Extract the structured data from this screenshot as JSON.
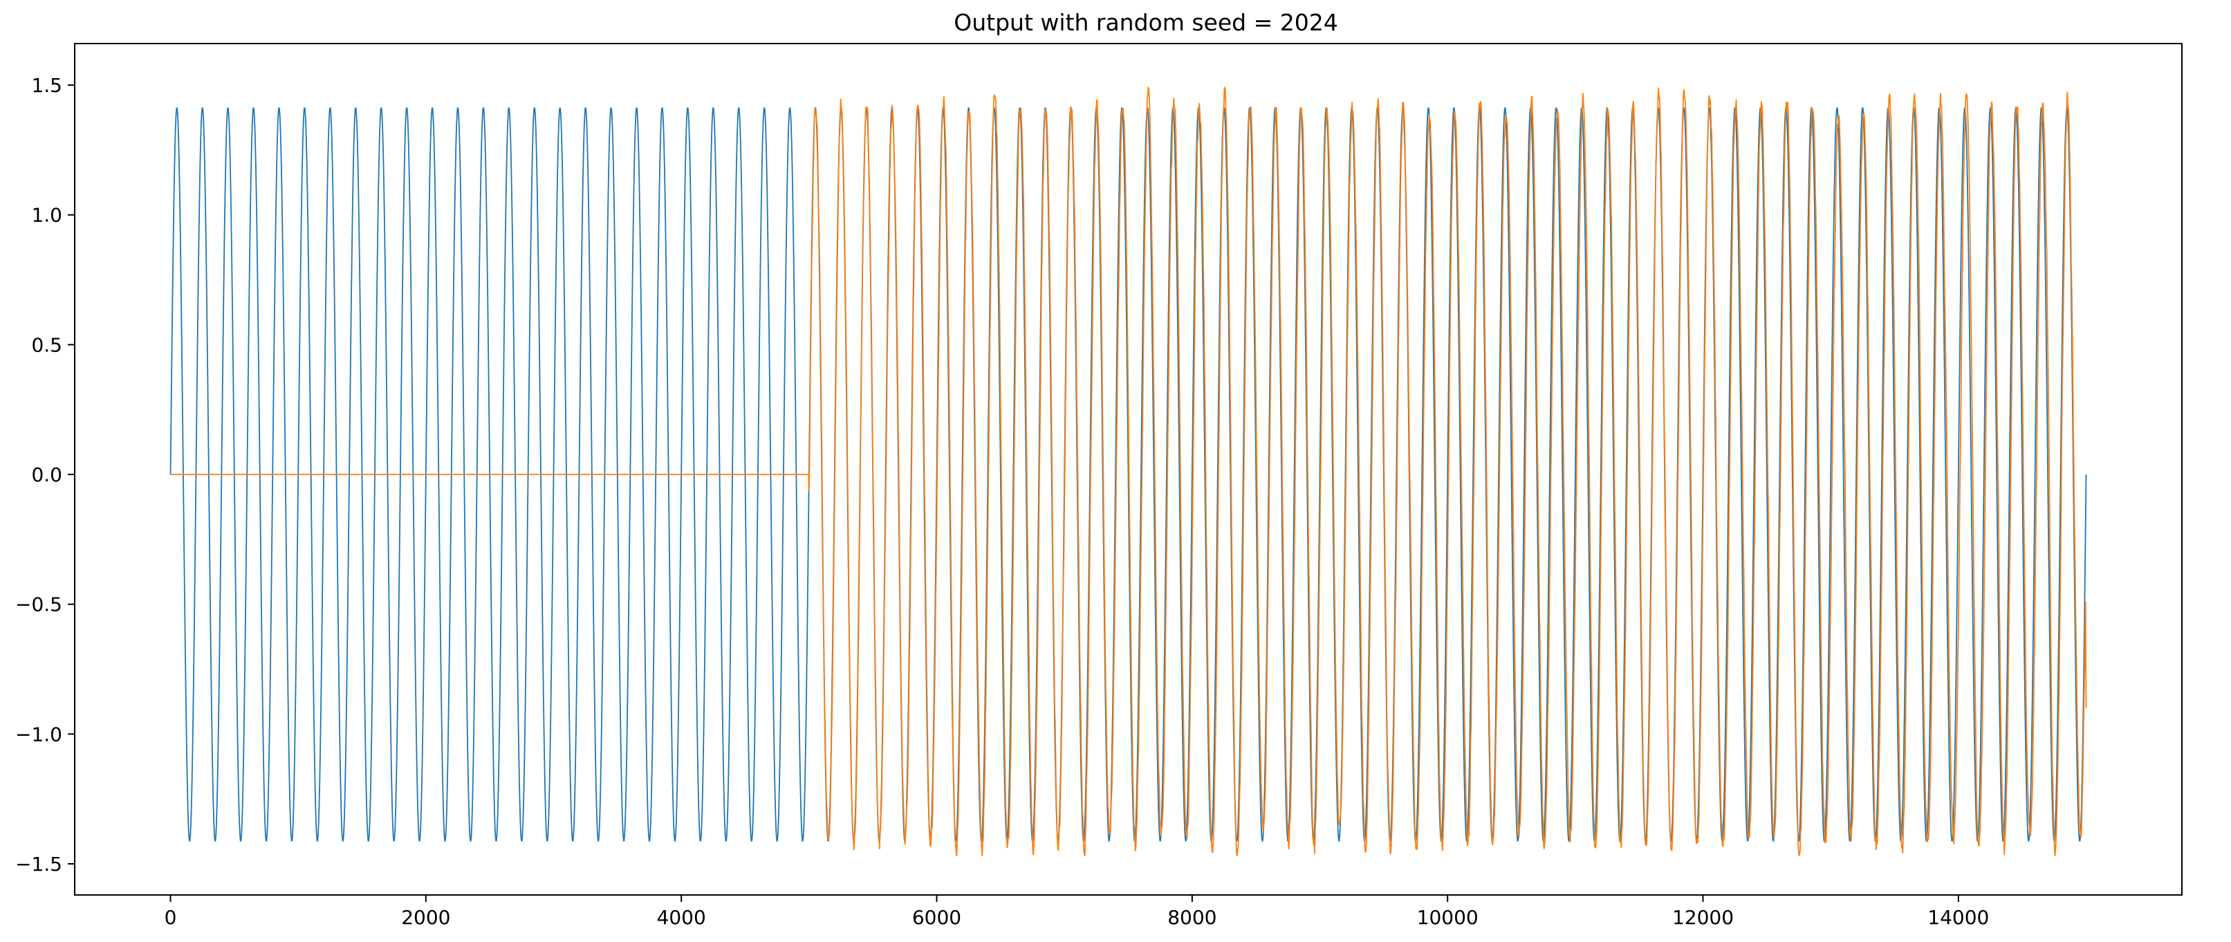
{
  "chart_data": {
    "type": "line",
    "title": "Output with random seed = 2024",
    "xlabel": "",
    "ylabel": "",
    "xlim": [
      -750,
      15750
    ],
    "ylim": [
      -1.62,
      1.66
    ],
    "xticks": [
      0,
      2000,
      4000,
      6000,
      8000,
      10000,
      12000,
      14000
    ],
    "xtick_labels": [
      "0",
      "2000",
      "4000",
      "6000",
      "8000",
      "10000",
      "12000",
      "14000"
    ],
    "yticks": [
      -1.5,
      -1.0,
      -0.5,
      0.0,
      0.5,
      1.0,
      1.5
    ],
    "ytick_labels": [
      "−1.5",
      "−1.0",
      "−0.5",
      "0.0",
      "0.5",
      "1.0",
      "1.5"
    ],
    "grid": false,
    "legend": "none",
    "series": [
      {
        "color": "#1f77b4",
        "description": "sine wave, amplitude 1.414, period ~200 samples over x 0-15000",
        "amplitude": 1.414,
        "period": 200,
        "x_start": 0,
        "x_end": 15000
      },
      {
        "color": "#ff7f0e",
        "description": "zero for x 0-5000, then noisy sine wave approximating the target, amplitude ~1.42 with peaks up to ~1.51",
        "zero_until": 5000,
        "amplitude": 1.42,
        "period": 200,
        "x_start": 0,
        "x_end": 15000,
        "end_value": -0.9
      }
    ]
  }
}
